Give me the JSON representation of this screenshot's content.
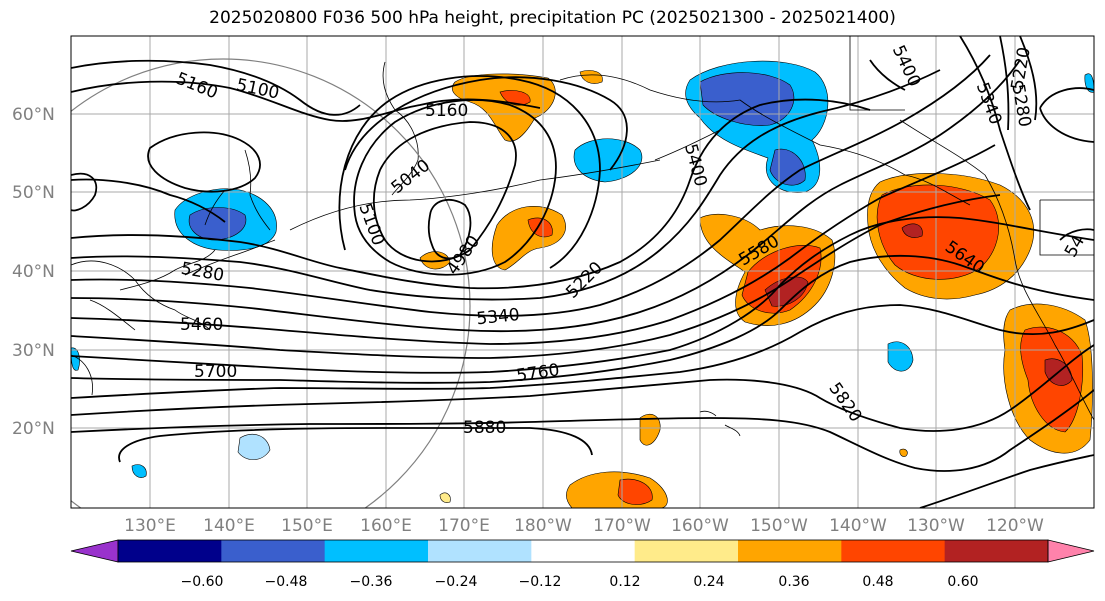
{
  "title": "2025020800 F036 500 hPa height, precipitation PC (2025021300 - 2025021400)",
  "lat_labels": [
    "60°N",
    "50°N",
    "40°N",
    "30°N",
    "20°N"
  ],
  "lon_labels": [
    "130°E",
    "140°E",
    "150°E",
    "160°E",
    "170°E",
    "180°W",
    "170°W",
    "160°W",
    "150°W",
    "140°W",
    "130°W",
    "120°W"
  ],
  "contour_labels": [
    "5160",
    "5100",
    "5160",
    "5040",
    "5100",
    "4980",
    "5280",
    "5220",
    "5340",
    "5460",
    "5700",
    "5760",
    "5880",
    "5820",
    "5580",
    "5640",
    "5400",
    "5400",
    "5340",
    "5280",
    "5220",
    "54"
  ],
  "colorbar": {
    "ticks": [
      "−0.60",
      "−0.48",
      "−0.36",
      "−0.24",
      "−0.12",
      "0.12",
      "0.24",
      "0.36",
      "0.48",
      "0.60"
    ],
    "colors": [
      "#9932cc",
      "#00008b",
      "#3a5fcd",
      "#00bfff",
      "#b0e2ff",
      "#ffffff",
      "#ffeb8a",
      "#ffa500",
      "#ff4500",
      "#b22222",
      "#ff82ab"
    ]
  }
}
